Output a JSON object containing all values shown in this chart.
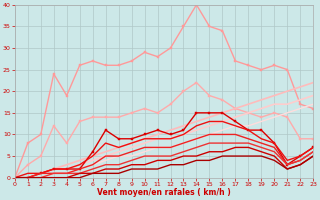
{
  "xlabel": "Vent moyen/en rafales ( km/h )",
  "xlim": [
    0,
    23
  ],
  "ylim": [
    0,
    40
  ],
  "yticks": [
    0,
    5,
    10,
    15,
    20,
    25,
    30,
    35,
    40
  ],
  "xticks": [
    0,
    1,
    2,
    3,
    4,
    5,
    6,
    7,
    8,
    9,
    10,
    11,
    12,
    13,
    14,
    15,
    16,
    17,
    18,
    19,
    20,
    21,
    22,
    23
  ],
  "bg_color": "#cce8e8",
  "grid_color": "#b0c8c8",
  "series": [
    {
      "x": [
        0,
        1,
        2,
        3,
        4,
        5,
        6,
        7,
        8,
        9,
        10,
        11,
        12,
        13,
        14,
        15,
        16,
        17,
        18,
        19,
        20,
        21,
        22,
        23
      ],
      "y": [
        0,
        8,
        10,
        24,
        19,
        26,
        27,
        26,
        26,
        27,
        29,
        28,
        30,
        35,
        40,
        35,
        34,
        27,
        26,
        25,
        26,
        25,
        17,
        16
      ],
      "color": "#ff9999",
      "lw": 1.0,
      "marker": "s",
      "ms": 2.0
    },
    {
      "x": [
        0,
        1,
        2,
        3,
        4,
        5,
        6,
        7,
        8,
        9,
        10,
        11,
        12,
        13,
        14,
        15,
        16,
        17,
        18,
        19,
        20,
        21,
        22,
        23
      ],
      "y": [
        0,
        3,
        5,
        12,
        8,
        13,
        14,
        14,
        14,
        15,
        16,
        15,
        17,
        20,
        22,
        19,
        18,
        16,
        15,
        14,
        15,
        14,
        9,
        9
      ],
      "color": "#ffaaaa",
      "lw": 1.0,
      "marker": "s",
      "ms": 2.0
    },
    {
      "x": [
        0,
        1,
        2,
        3,
        4,
        5,
        6,
        7,
        8,
        9,
        10,
        11,
        12,
        13,
        14,
        15,
        16,
        17,
        18,
        19,
        20,
        21,
        22,
        23
      ],
      "y": [
        0,
        0,
        1,
        2,
        3,
        4,
        5,
        6,
        7,
        8,
        9,
        10,
        11,
        12,
        13,
        14,
        15,
        16,
        17,
        18,
        19,
        20,
        21,
        22
      ],
      "color": "#ffbbbb",
      "lw": 1.2,
      "marker": null,
      "ms": 0
    },
    {
      "x": [
        0,
        1,
        2,
        3,
        4,
        5,
        6,
        7,
        8,
        9,
        10,
        11,
        12,
        13,
        14,
        15,
        16,
        17,
        18,
        19,
        20,
        21,
        22,
        23
      ],
      "y": [
        0,
        0,
        1,
        2,
        2,
        3,
        4,
        5,
        6,
        7,
        8,
        9,
        9,
        10,
        11,
        12,
        13,
        14,
        15,
        16,
        17,
        17,
        18,
        19
      ],
      "color": "#ffcccc",
      "lw": 1.2,
      "marker": null,
      "ms": 0
    },
    {
      "x": [
        0,
        1,
        2,
        3,
        4,
        5,
        6,
        7,
        8,
        9,
        10,
        11,
        12,
        13,
        14,
        15,
        16,
        17,
        18,
        19,
        20,
        21,
        22,
        23
      ],
      "y": [
        0,
        0,
        0,
        1,
        1,
        2,
        3,
        4,
        5,
        5,
        6,
        7,
        7,
        8,
        9,
        10,
        11,
        12,
        12,
        13,
        14,
        15,
        16,
        17
      ],
      "color": "#ffdddd",
      "lw": 1.0,
      "marker": null,
      "ms": 0
    },
    {
      "x": [
        0,
        1,
        2,
        3,
        4,
        5,
        6,
        7,
        8,
        9,
        10,
        11,
        12,
        13,
        14,
        15,
        16,
        17,
        18,
        19,
        20,
        21,
        22,
        23
      ],
      "y": [
        0,
        0,
        1,
        2,
        2,
        2,
        6,
        11,
        9,
        9,
        10,
        11,
        10,
        11,
        15,
        15,
        15,
        13,
        11,
        11,
        8,
        3,
        5,
        7
      ],
      "color": "#dd0000",
      "lw": 1.0,
      "marker": "s",
      "ms": 2.0
    },
    {
      "x": [
        0,
        1,
        2,
        3,
        4,
        5,
        6,
        7,
        8,
        9,
        10,
        11,
        12,
        13,
        14,
        15,
        16,
        17,
        18,
        19,
        20,
        21,
        22,
        23
      ],
      "y": [
        0,
        1,
        1,
        2,
        2,
        3,
        5,
        8,
        7,
        8,
        9,
        9,
        9,
        10,
        12,
        13,
        13,
        12,
        11,
        9,
        8,
        4,
        5,
        7
      ],
      "color": "#ee1111",
      "lw": 1.0,
      "marker": null,
      "ms": 0
    },
    {
      "x": [
        0,
        1,
        2,
        3,
        4,
        5,
        6,
        7,
        8,
        9,
        10,
        11,
        12,
        13,
        14,
        15,
        16,
        17,
        18,
        19,
        20,
        21,
        22,
        23
      ],
      "y": [
        0,
        0,
        1,
        1,
        1,
        2,
        3,
        5,
        5,
        6,
        7,
        7,
        7,
        8,
        9,
        10,
        10,
        10,
        9,
        8,
        7,
        3,
        4,
        6
      ],
      "color": "#ee2222",
      "lw": 1.0,
      "marker": null,
      "ms": 0
    },
    {
      "x": [
        0,
        1,
        2,
        3,
        4,
        5,
        6,
        7,
        8,
        9,
        10,
        11,
        12,
        13,
        14,
        15,
        16,
        17,
        18,
        19,
        20,
        21,
        22,
        23
      ],
      "y": [
        0,
        0,
        0,
        1,
        1,
        1,
        2,
        3,
        3,
        4,
        5,
        5,
        5,
        6,
        7,
        8,
        8,
        8,
        8,
        7,
        6,
        3,
        4,
        6
      ],
      "color": "#ee3333",
      "lw": 1.0,
      "marker": null,
      "ms": 0
    },
    {
      "x": [
        0,
        1,
        2,
        3,
        4,
        5,
        6,
        7,
        8,
        9,
        10,
        11,
        12,
        13,
        14,
        15,
        16,
        17,
        18,
        19,
        20,
        21,
        22,
        23
      ],
      "y": [
        0,
        0,
        0,
        0,
        0,
        1,
        1,
        2,
        2,
        3,
        3,
        4,
        4,
        5,
        5,
        6,
        6,
        7,
        7,
        6,
        5,
        2,
        3,
        5
      ],
      "color": "#cc0000",
      "lw": 1.0,
      "marker": null,
      "ms": 0
    },
    {
      "x": [
        0,
        1,
        2,
        3,
        4,
        5,
        6,
        7,
        8,
        9,
        10,
        11,
        12,
        13,
        14,
        15,
        16,
        17,
        18,
        19,
        20,
        21,
        22,
        23
      ],
      "y": [
        0,
        0,
        0,
        0,
        0,
        0,
        1,
        1,
        1,
        2,
        2,
        2,
        3,
        3,
        4,
        4,
        5,
        5,
        5,
        5,
        4,
        2,
        3,
        5
      ],
      "color": "#aa0000",
      "lw": 1.0,
      "marker": null,
      "ms": 0
    }
  ]
}
